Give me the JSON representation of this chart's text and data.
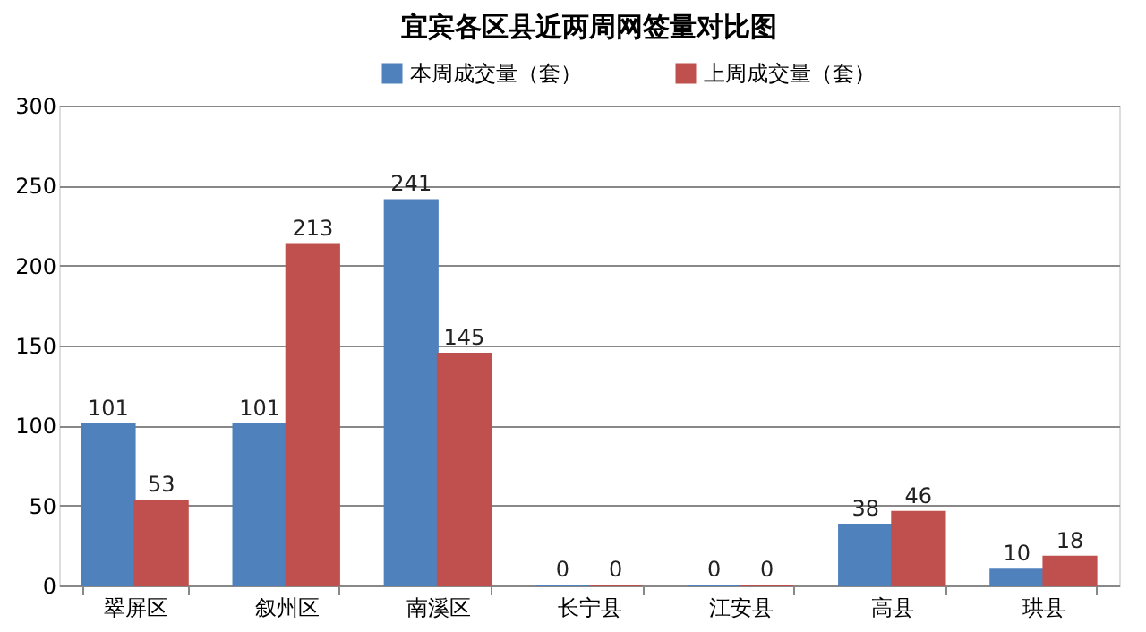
{
  "chart_data": {
    "type": "bar",
    "title": "宜宾各区县近两周网签量对比图",
    "categories": [
      "翠屏区",
      "叙州区",
      "南溪区",
      "长宁县",
      "江安县",
      "高县",
      "珙县"
    ],
    "series": [
      {
        "name": "本周成交量（套）",
        "color": "#4f81bd",
        "values": [
          101,
          101,
          241,
          0,
          0,
          38,
          10
        ]
      },
      {
        "name": "上周成交量（套）",
        "color": "#c0504d",
        "values": [
          53,
          213,
          145,
          0,
          0,
          46,
          18
        ]
      }
    ],
    "ylim": [
      0,
      300
    ],
    "yticks": [
      0,
      50,
      100,
      150,
      200,
      250,
      300
    ],
    "grid": "y",
    "legend": "top",
    "data_labels": true
  }
}
